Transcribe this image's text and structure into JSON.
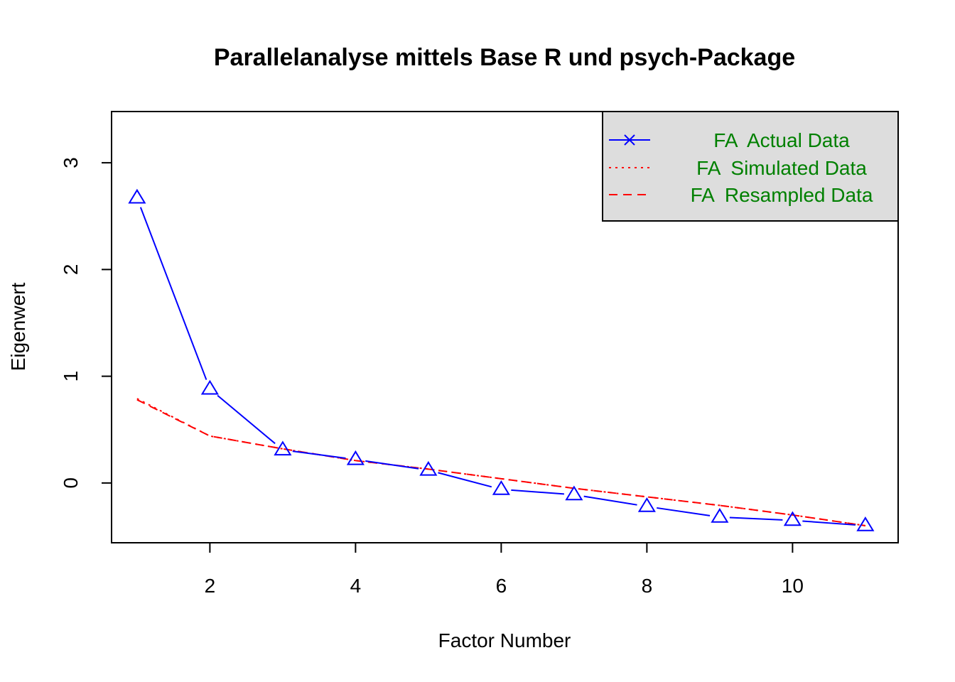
{
  "chart_data": {
    "type": "line",
    "title": "Parallelanalyse mittels Base R und psych-Package",
    "xlabel": "Factor Number",
    "ylabel": "Eigenwert",
    "xlim": [
      0.65,
      11.45
    ],
    "ylim": [
      -0.56,
      3.48
    ],
    "x_ticks": [
      2,
      4,
      6,
      8,
      10
    ],
    "x_tick_labels": [
      "2",
      "4",
      "6",
      "8",
      "10"
    ],
    "y_ticks": [
      0,
      1,
      2,
      3
    ],
    "y_tick_labels": [
      "0",
      "1",
      "2",
      "3"
    ],
    "grid": false,
    "legend_position": "top-right",
    "legend_background": "#dddddd",
    "legend_text_color": "#008000",
    "x": [
      1,
      2,
      3,
      4,
      5,
      6,
      7,
      8,
      9,
      10,
      11
    ],
    "series": [
      {
        "name": "FA  Actual Data",
        "legend_marker": "x",
        "marker": "triangle",
        "line_style": "solid",
        "color": "#0000ff",
        "values": [
          2.67,
          0.88,
          0.31,
          0.22,
          0.12,
          -0.06,
          -0.11,
          -0.22,
          -0.32,
          -0.35,
          -0.4
        ]
      },
      {
        "name": "FA  Simulated Data",
        "marker": "none",
        "line_style": "dotted",
        "color": "#ff0000",
        "values": [
          0.79,
          0.44,
          0.32,
          0.21,
          0.13,
          0.04,
          -0.05,
          -0.13,
          -0.21,
          -0.3,
          -0.4
        ]
      },
      {
        "name": "FA  Resampled Data",
        "marker": "none",
        "line_style": "dashed",
        "color": "#ff0000",
        "values": [
          0.78,
          0.44,
          0.32,
          0.21,
          0.13,
          0.04,
          -0.05,
          -0.13,
          -0.21,
          -0.3,
          -0.4
        ]
      }
    ]
  }
}
